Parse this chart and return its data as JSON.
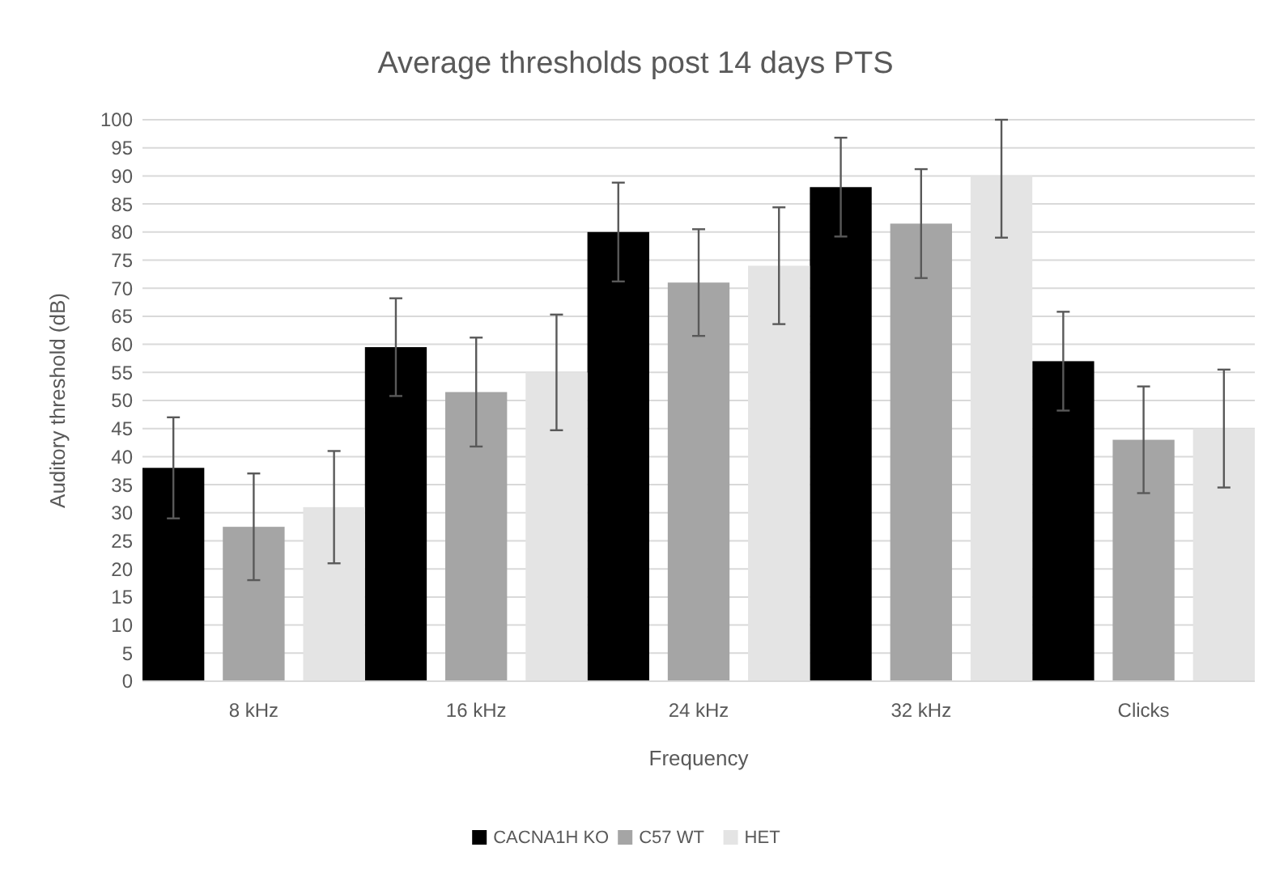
{
  "chart_data": {
    "type": "bar",
    "title": "Average thresholds post 14 days PTS",
    "xlabel": "Frequency",
    "ylabel": "Auditory threshold (dB)",
    "categories": [
      "8 kHz",
      "16 kHz",
      "24 kHz",
      "32 kHz",
      "Clicks"
    ],
    "series": [
      {
        "name": "CACNA1H KO",
        "color": "#000000",
        "values": [
          38,
          59.5,
          80,
          88,
          57
        ],
        "errors": [
          9,
          8.7,
          8.8,
          8.8,
          8.8
        ]
      },
      {
        "name": "C57 WT",
        "color": "#a5a5a5",
        "values": [
          27.5,
          51.5,
          71,
          81.5,
          43
        ],
        "errors": [
          9.5,
          9.7,
          9.5,
          9.7,
          9.5
        ]
      },
      {
        "name": "HET",
        "color": "#e4e4e4",
        "values": [
          31,
          55,
          74,
          90,
          45
        ],
        "errors": [
          10,
          10.3,
          10.4,
          [
            79,
            100
          ],
          10.5
        ]
      }
    ],
    "ylim": [
      0,
      100
    ],
    "yticks": [
      0,
      5,
      10,
      15,
      20,
      25,
      30,
      35,
      40,
      45,
      50,
      55,
      60,
      65,
      70,
      75,
      80,
      85,
      90,
      95,
      100
    ],
    "grid": "y",
    "legend": "bottom"
  }
}
